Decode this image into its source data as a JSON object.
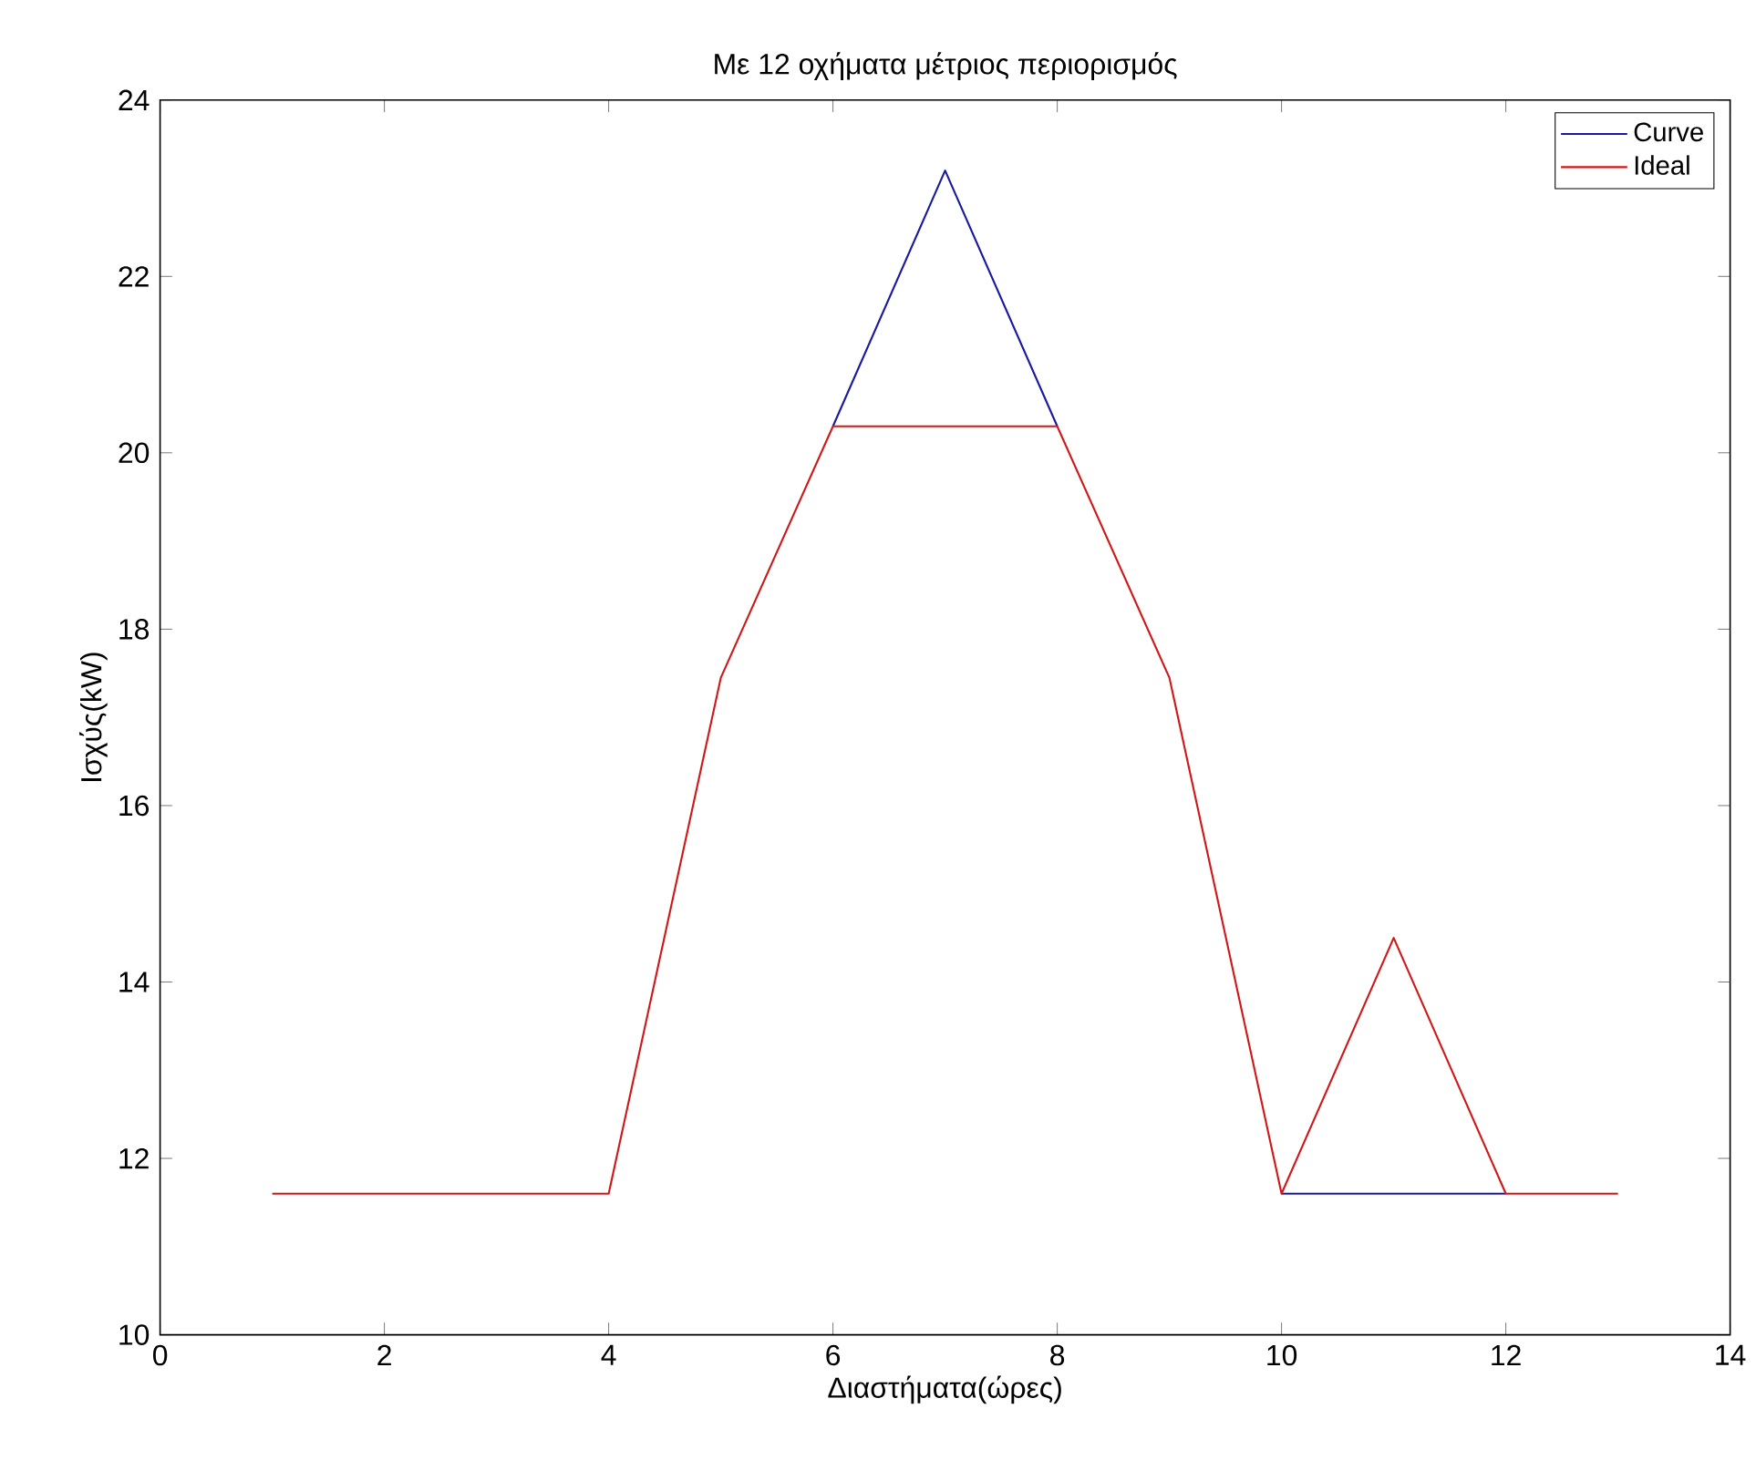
{
  "chart_data": {
    "type": "line",
    "title": "Με 12 οχήματα μέτριος περιορισμός",
    "xlabel": "Διαστήματα(ώρες)",
    "ylabel": "Ισχύς(kW)",
    "x": [
      1,
      2,
      3,
      4,
      5,
      6,
      7,
      8,
      9,
      10,
      11,
      12,
      13
    ],
    "series": [
      {
        "name": "Curve",
        "color": "#1a1aa0",
        "values": [
          null,
          null,
          null,
          null,
          null,
          20.3,
          23.2,
          20.3,
          null,
          11.6,
          11.6,
          11.6,
          null
        ]
      },
      {
        "name": "Ideal",
        "color": "#d01818",
        "values": [
          11.6,
          11.6,
          11.6,
          11.6,
          17.45,
          20.3,
          20.3,
          20.3,
          17.45,
          11.6,
          14.5,
          11.6,
          11.6
        ]
      }
    ],
    "xlim": [
      0,
      14
    ],
    "ylim": [
      10,
      24
    ],
    "xticks": [
      0,
      2,
      4,
      6,
      8,
      10,
      12,
      14
    ],
    "yticks": [
      10,
      12,
      14,
      16,
      18,
      20,
      22,
      24
    ],
    "grid": false,
    "legend": "top right",
    "marker": "none",
    "line_style": "solid"
  }
}
